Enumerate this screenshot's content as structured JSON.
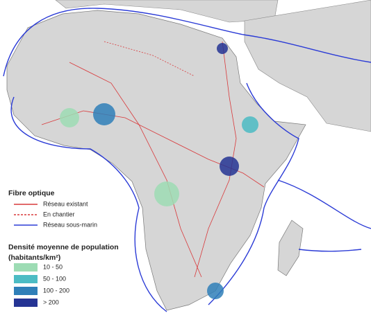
{
  "legend": {
    "fibre_title": "Fibre optique",
    "fibre_items": [
      {
        "label": "Réseau existant",
        "color": "#d9383a",
        "dash": false
      },
      {
        "label": "En chantier",
        "color": "#d9383a",
        "dash": true
      },
      {
        "label": "Réseau sous-marin",
        "color": "#2b3bd6",
        "dash": false
      }
    ],
    "density_title": "Densité moyenne de population",
    "density_unit": "(habitants/km²)",
    "density_classes": [
      {
        "label": "10 - 50",
        "color": "#9ddcb4"
      },
      {
        "label": "50 - 100",
        "color": "#4cbcc4"
      },
      {
        "label": "100 - 200",
        "color": "#2f7fb8"
      },
      {
        "label": "> 200",
        "color": "#253494"
      }
    ]
  }
}
